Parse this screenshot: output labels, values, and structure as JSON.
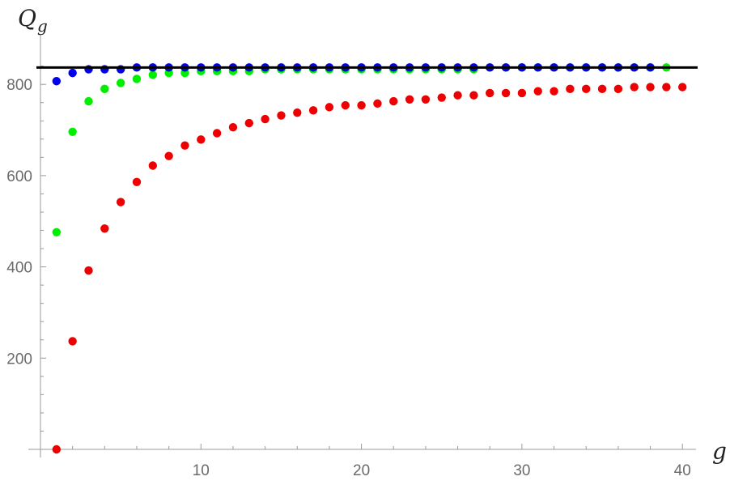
{
  "chart_data": {
    "type": "scatter",
    "title": "",
    "xlabel": "g",
    "ylabel": "Q",
    "ylabel_subscript": "g",
    "xlim": [
      0,
      41
    ],
    "ylim": [
      0,
      880
    ],
    "x_ticks": [
      10,
      20,
      30,
      40
    ],
    "y_ticks": [
      200,
      400,
      600,
      800
    ],
    "grid": false,
    "reference_line": {
      "y": 837,
      "color": "#000000"
    },
    "series": [
      {
        "color": "#ee0000",
        "x": [
          1,
          2,
          3,
          4,
          5,
          6,
          7,
          8,
          9,
          10,
          11,
          12,
          13,
          14,
          15,
          16,
          17,
          18,
          19,
          20,
          21,
          22,
          23,
          24,
          25,
          26,
          27,
          28,
          29,
          30,
          31,
          32,
          33,
          34,
          35,
          36,
          37,
          38,
          39,
          40
        ],
        "values": [
          0,
          237,
          392,
          484,
          542,
          586,
          622,
          643,
          666,
          679,
          693,
          706,
          715,
          724,
          732,
          738,
          743,
          750,
          754,
          754,
          758,
          763,
          767,
          767,
          771,
          776,
          776,
          781,
          781,
          781,
          785,
          785,
          790,
          790,
          790,
          790,
          794,
          794,
          794,
          794
        ]
      },
      {
        "color": "#00ee00",
        "x": [
          1,
          2,
          3,
          4,
          5,
          6,
          7,
          8,
          9,
          10,
          11,
          12,
          13,
          14,
          15,
          16,
          17,
          18,
          19,
          20,
          21,
          22,
          23,
          24,
          25,
          26,
          27,
          28,
          29,
          30,
          31,
          32,
          33,
          34,
          35,
          36,
          37,
          38,
          39
        ],
        "values": [
          476,
          696,
          763,
          790,
          803,
          812,
          821,
          825,
          825,
          829,
          829,
          829,
          829,
          833,
          833,
          833,
          833,
          833,
          833,
          833,
          833,
          833,
          833,
          833,
          833,
          833,
          833,
          837,
          837,
          837,
          837,
          837,
          837,
          837,
          837,
          837,
          837,
          837,
          837
        ]
      },
      {
        "color": "#0000ee",
        "x": [
          1,
          2,
          3,
          4,
          5,
          6,
          7,
          8,
          9,
          10,
          11,
          12,
          13,
          14,
          15,
          16,
          17,
          18,
          19,
          20,
          21,
          22,
          23,
          24,
          25,
          26,
          27,
          28,
          29,
          30,
          31,
          32,
          33,
          34,
          35,
          36,
          37,
          38
        ],
        "values": [
          807,
          825,
          833,
          833,
          833,
          837,
          837,
          837,
          837,
          837,
          837,
          837,
          837,
          837,
          837,
          837,
          837,
          837,
          837,
          837,
          837,
          837,
          837,
          837,
          837,
          837,
          837,
          837,
          837,
          837,
          837,
          837,
          837,
          837,
          837,
          837,
          837,
          837
        ]
      }
    ]
  }
}
